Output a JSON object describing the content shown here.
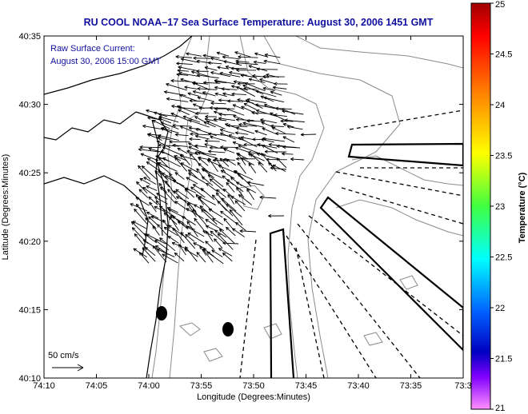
{
  "title": "RU COOL  NOAA–17  Sea Surface Temperature:  August 30, 2006 1451 GMT",
  "current_legend": {
    "line1": "Raw Surface Current:",
    "line2": "August 30, 2006 15:00 GMT"
  },
  "scale_label": "50 cm/s",
  "colorbar": {
    "label": "Temperature (°C)",
    "ticks": [
      "25",
      "24.5",
      "24",
      "23.5",
      "23",
      "22.5",
      "22",
      "21.5",
      "21"
    ],
    "colors": [
      "#b00000",
      "#ff0000",
      "#ff8000",
      "#ffff00",
      "#40ff40",
      "#00ffff",
      "#0060ff",
      "#0000c0",
      "#8000ff",
      "#ff40ff",
      "#ff90ff"
    ]
  },
  "chart_data": {
    "type": "map",
    "xlabel": "Longitude (Degrees:Minutes)",
    "ylabel": "Latitude (Degrees:Minutes)",
    "x_ticks": [
      "74:10",
      "74:05",
      "74:00",
      "73:55",
      "73:50",
      "73:45",
      "73:40",
      "73:35",
      "73:3"
    ],
    "y_ticks": [
      "40:35",
      "40:30",
      "40:25",
      "40:20",
      "40:15",
      "40:10"
    ],
    "xlim_minutes_west": [
      10,
      30
    ],
    "ylim_minutes_north": [
      10,
      35
    ]
  }
}
